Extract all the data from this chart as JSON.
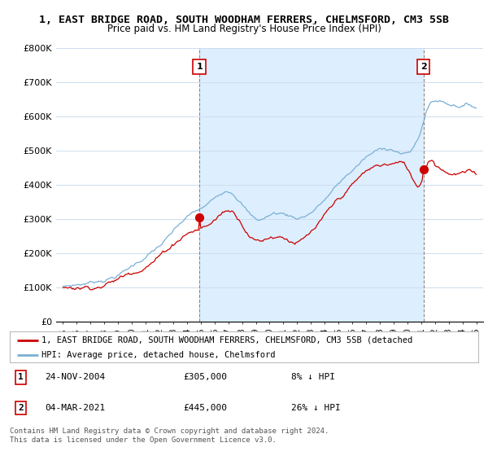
{
  "title": "1, EAST BRIDGE ROAD, SOUTH WOODHAM FERRERS, CHELMSFORD, CM3 5SB",
  "subtitle": "Price paid vs. HM Land Registry's House Price Index (HPI)",
  "background_color": "#ffffff",
  "shade_color": "#ddeeff",
  "grid_color": "#ccddee",
  "hpi_color": "#7ab0d4",
  "price_color": "#cc0000",
  "sale1_idx_year": 2004.9,
  "sale2_idx_year": 2021.17,
  "sale1_price": 305000,
  "sale2_price": 445000,
  "ylim": [
    0,
    800000
  ],
  "yticks": [
    0,
    100000,
    200000,
    300000,
    400000,
    500000,
    600000,
    700000,
    800000
  ],
  "ytick_labels": [
    "£0",
    "£100K",
    "£200K",
    "£300K",
    "£400K",
    "£500K",
    "£600K",
    "£700K",
    "£800K"
  ],
  "legend_line1": "1, EAST BRIDGE ROAD, SOUTH WOODHAM FERRERS, CHELMSFORD, CM3 5SB (detached",
  "legend_line2": "HPI: Average price, detached house, Chelmsford",
  "footer": "Contains HM Land Registry data © Crown copyright and database right 2024.\nThis data is licensed under the Open Government Licence v3.0."
}
